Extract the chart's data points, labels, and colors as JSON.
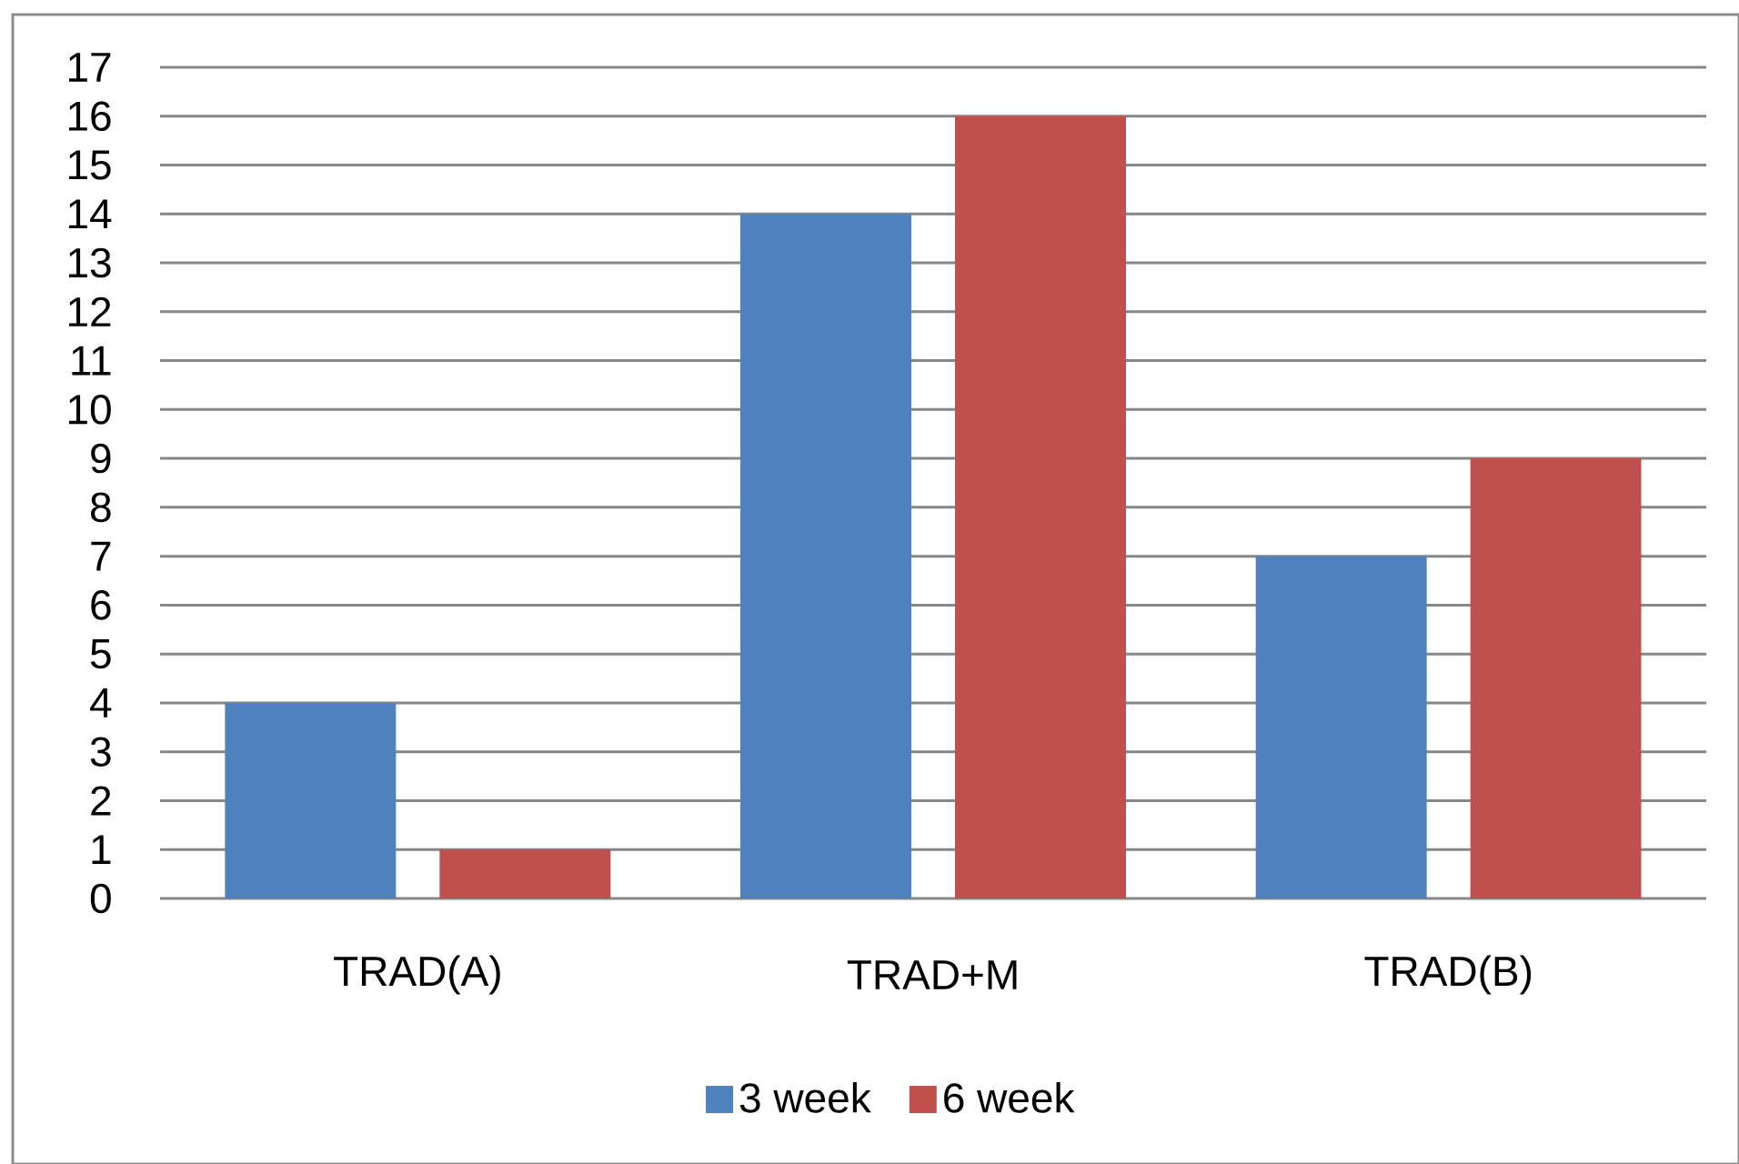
{
  "chart_data": {
    "type": "bar",
    "categories": [
      "TRAD(A)",
      "TRAD+M",
      "TRAD(B)"
    ],
    "series": [
      {
        "name": "3 week",
        "color": "#4f81bd",
        "values": [
          4,
          14,
          7
        ]
      },
      {
        "name": "6 week",
        "color": "#c0504d",
        "values": [
          1,
          16,
          9
        ]
      }
    ],
    "ylim": [
      0,
      17
    ],
    "yticks": [
      0,
      1,
      2,
      3,
      4,
      5,
      6,
      7,
      8,
      9,
      10,
      11,
      12,
      13,
      14,
      15,
      16,
      17
    ],
    "grid": "y",
    "legend": "bottom"
  }
}
